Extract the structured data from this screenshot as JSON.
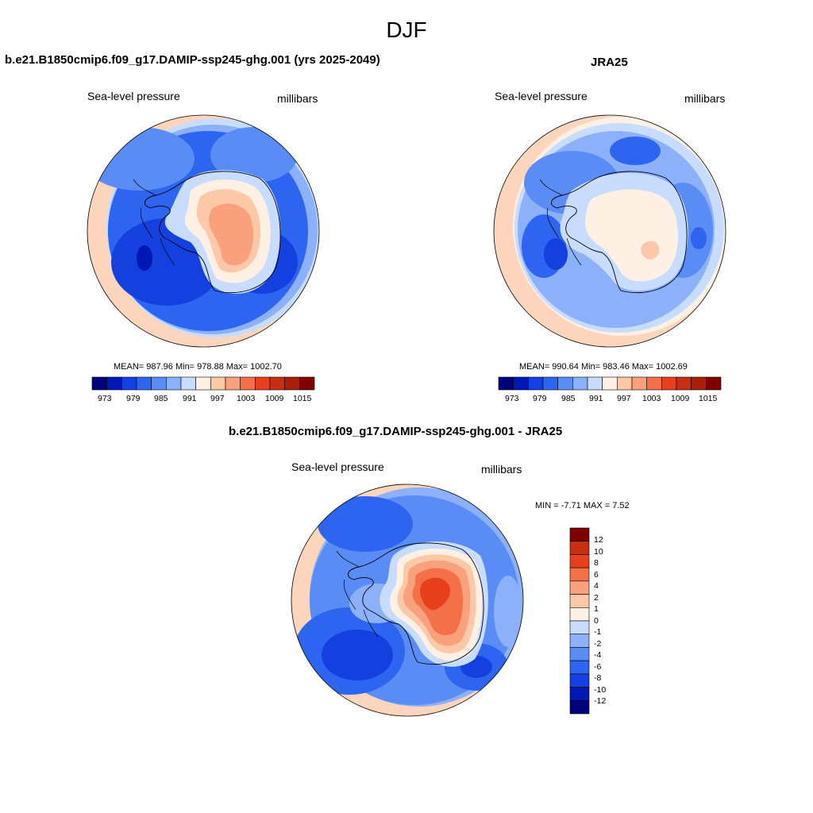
{
  "page": {
    "title": "DJF"
  },
  "colors": {
    "sequential": [
      "#00007f",
      "#0018b4",
      "#1440e0",
      "#2d64f0",
      "#5a8cf5",
      "#8cb0fa",
      "#c8dcff",
      "#fff0e4",
      "#fdc8a8",
      "#f9a07c",
      "#f47048",
      "#e8401c",
      "#c82e10",
      "#a81e0a",
      "#800000"
    ],
    "difference": [
      "#00007f",
      "#0018b4",
      "#1440e0",
      "#2d64f0",
      "#5a8cf5",
      "#8cb0fa",
      "#c8dcff",
      "#fff0e4",
      "#fdc8a8",
      "#f9a07c",
      "#f47048",
      "#e8401c",
      "#c82e10",
      "#800000"
    ]
  },
  "panels": [
    {
      "title": "b.e21.B1850cmip6.f09_g17.DAMIP-ssp245-ghg.001 (yrs 2025-2049)",
      "variable": "Sea-level pressure",
      "units": "millibars",
      "stats": "MEAN= 987.96  Min= 978.88  Max= 1002.70",
      "colorbar_ticks": [
        "973",
        "979",
        "985",
        "991",
        "997",
        "1003",
        "1009",
        "1015"
      ]
    },
    {
      "title": "JRA25",
      "variable": "Sea-level pressure",
      "units": "millibars",
      "stats": "MEAN= 990.64  Min= 983.46  Max= 1002.69",
      "colorbar_ticks": [
        "973",
        "979",
        "985",
        "991",
        "997",
        "1003",
        "1009",
        "1015"
      ]
    },
    {
      "title": "b.e21.B1850cmip6.f09_g17.DAMIP-ssp245-ghg.001 - JRA25",
      "variable": "Sea-level pressure",
      "units": "millibars",
      "stats": "MIN =  -7.71 MAX =   7.52",
      "colorbar_ticks": [
        "12",
        "10",
        "8",
        "6",
        "4",
        "2",
        "1",
        "0",
        "-1",
        "-2",
        "-4",
        "-6",
        "-8",
        "-10",
        "-12"
      ]
    }
  ]
}
